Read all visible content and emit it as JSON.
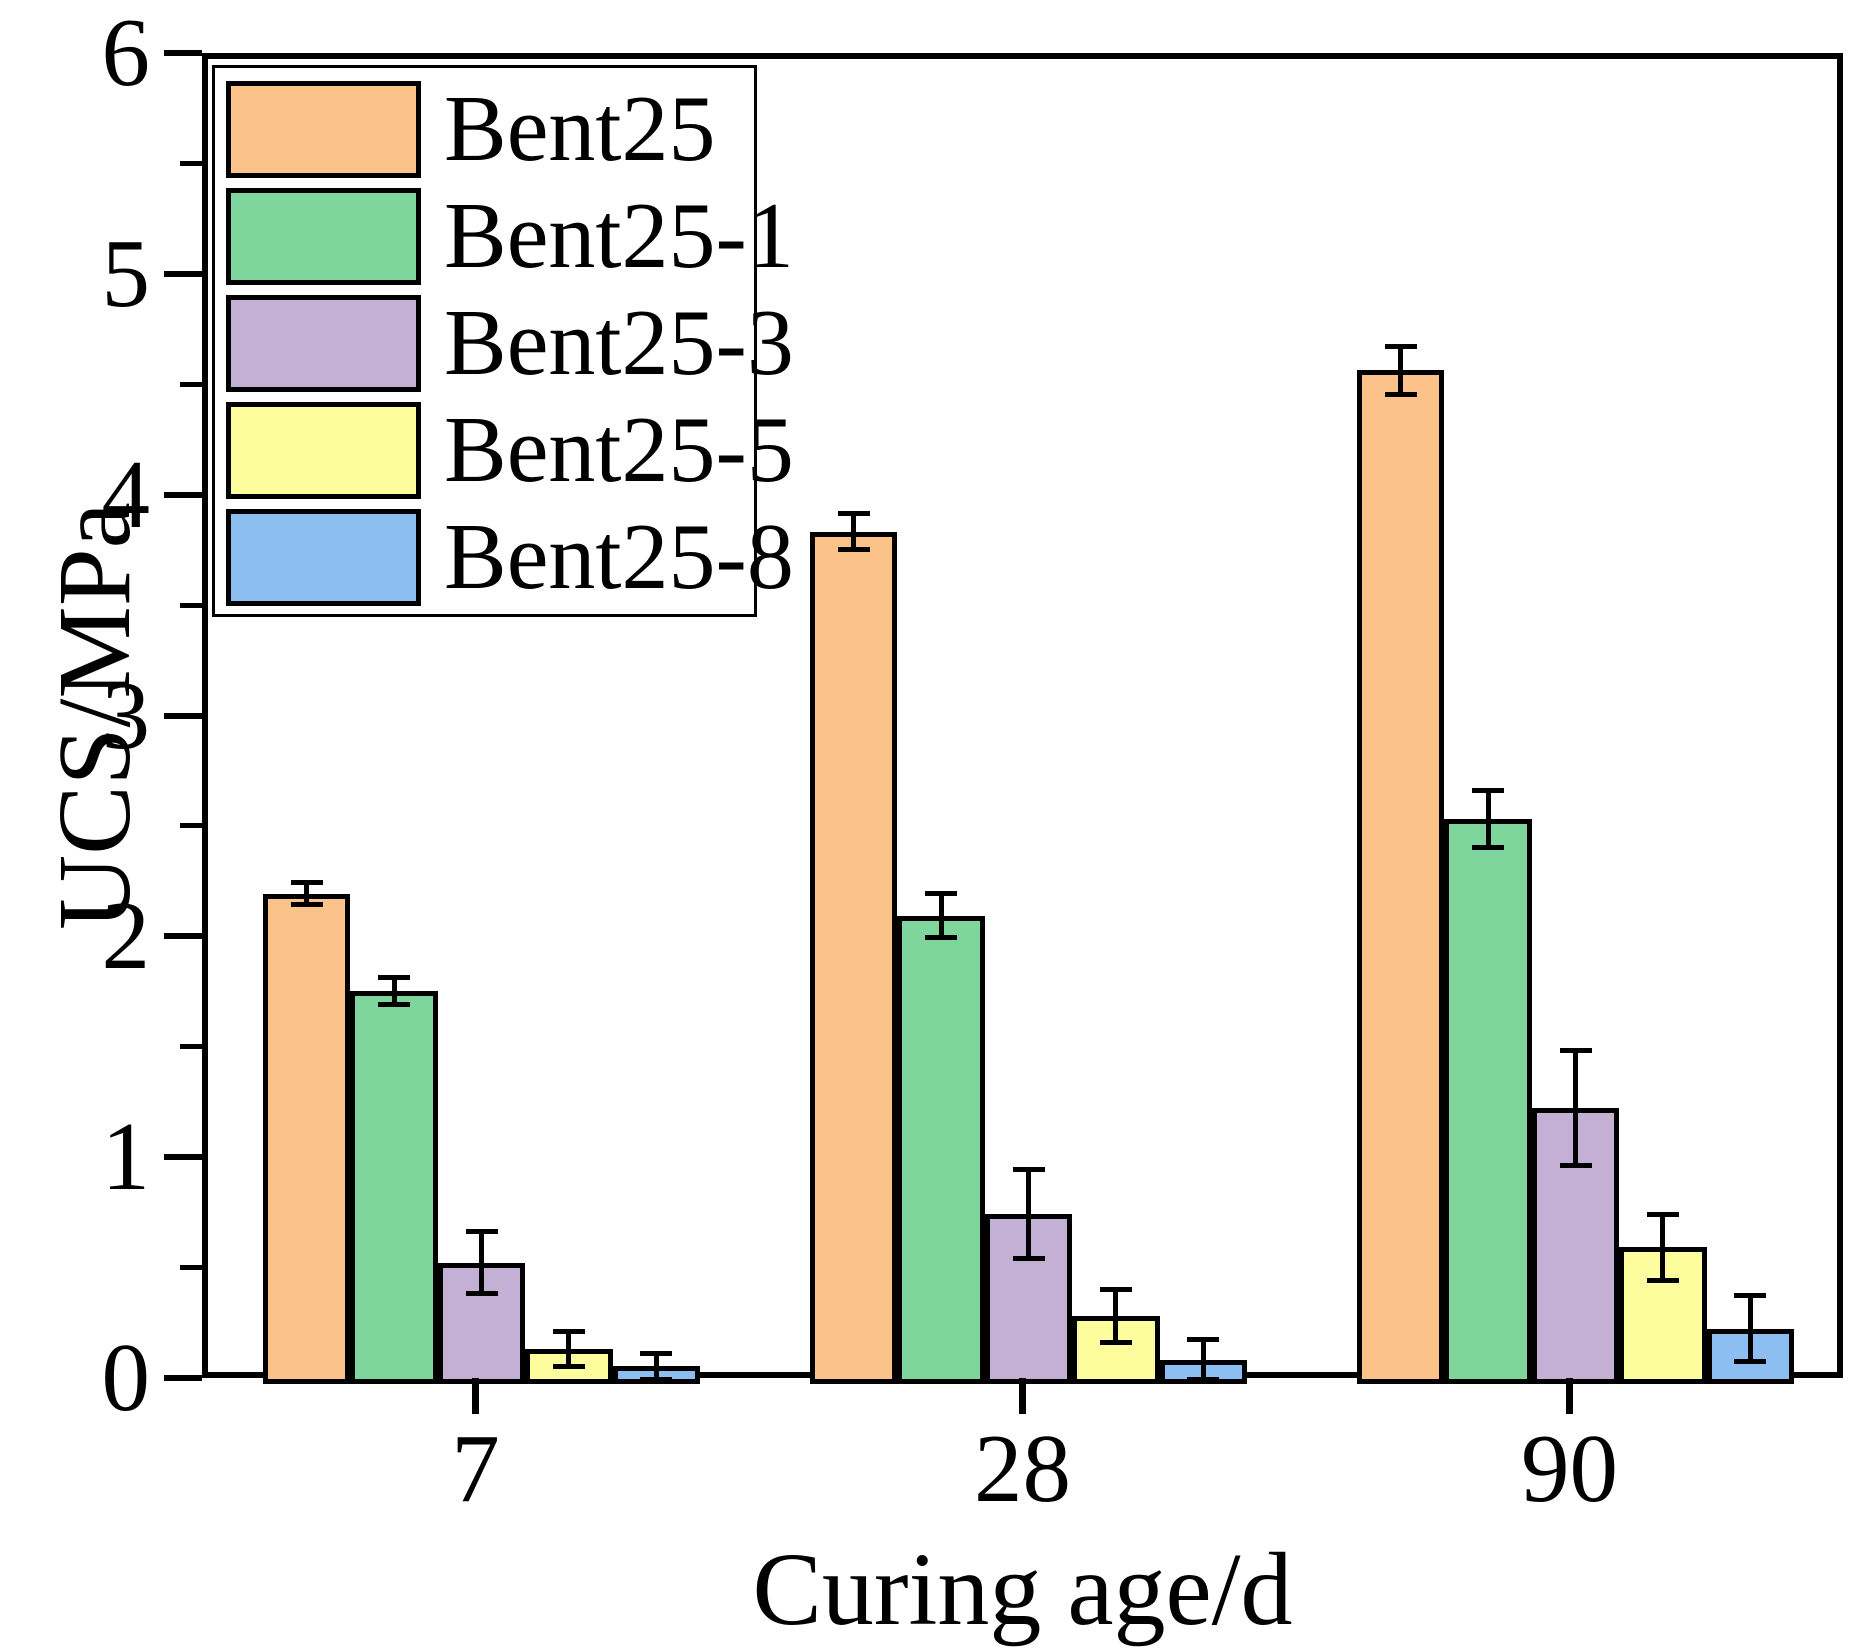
{
  "chart_data": {
    "type": "bar",
    "title": "",
    "xlabel": "Curing age/d",
    "ylabel": "UCS/MPa",
    "categories": [
      "7",
      "28",
      "90"
    ],
    "series": [
      {
        "name": "Bent25",
        "color": "#FBC28A",
        "values": [
          2.22,
          3.86,
          4.59
        ],
        "errors": [
          0.05,
          0.08,
          0.11
        ]
      },
      {
        "name": "Bent25-1",
        "color": "#7ED69C",
        "values": [
          1.78,
          2.12,
          2.56
        ],
        "errors": [
          0.06,
          0.1,
          0.13
        ]
      },
      {
        "name": "Bent25-3",
        "color": "#C5B0D5",
        "values": [
          0.55,
          0.77,
          1.25
        ],
        "errors": [
          0.14,
          0.2,
          0.26
        ]
      },
      {
        "name": "Bent25-5",
        "color": "#FDFD9D",
        "values": [
          0.16,
          0.31,
          0.62
        ],
        "errors": [
          0.08,
          0.12,
          0.15
        ]
      },
      {
        "name": "Bent25-8",
        "color": "#8CBEF2",
        "values": [
          0.08,
          0.11,
          0.25
        ],
        "errors": [
          0.06,
          0.09,
          0.15
        ]
      }
    ],
    "ylim": [
      0,
      6
    ],
    "yticks": [
      "0",
      "1",
      "2",
      "3",
      "4",
      "5",
      "6"
    ],
    "minor_tick_step": 0.5,
    "grid": false,
    "legend_position": "top-left",
    "bar_edge_color": "#000000",
    "error_bar_color": "#000000"
  }
}
